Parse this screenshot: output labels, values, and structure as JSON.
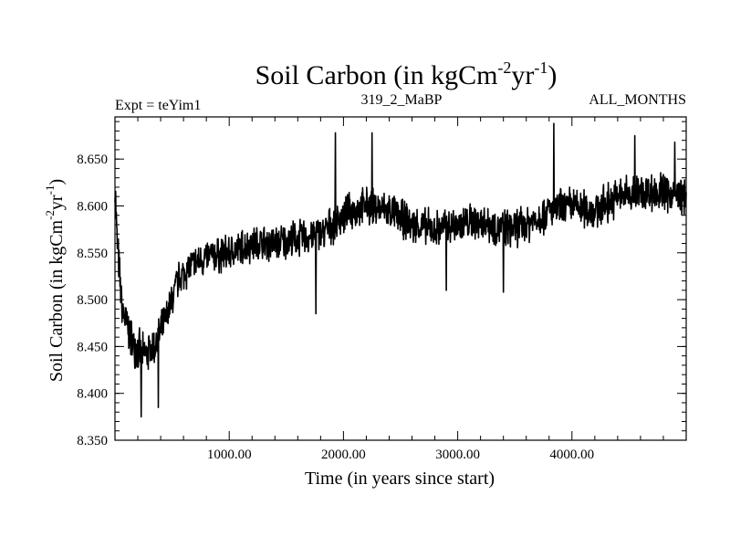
{
  "chart_data": {
    "type": "line",
    "title": {
      "prefix": "Soil Carbon (in kgCm",
      "sup1": "-2",
      "mid": "yr",
      "sup2": "-1",
      "suffix": ")"
    },
    "subtitle_left": "Expt = teYim1",
    "subtitle_center": "319_2_MaBP",
    "subtitle_right": "ALL_MONTHS",
    "xlabel": "Time (in years since start)",
    "ylabel": {
      "prefix": "Soil Carbon (in kgCm",
      "sup1": "-2",
      "mid": "yr",
      "sup2": "-1",
      "suffix": ")"
    },
    "xlim": [
      0,
      5000
    ],
    "ylim": [
      8.35,
      8.695
    ],
    "x_ticks": [
      {
        "value": 1000,
        "label": "1000.00"
      },
      {
        "value": 2000,
        "label": "2000.00"
      },
      {
        "value": 3000,
        "label": "3000.00"
      },
      {
        "value": 4000,
        "label": "4000.00"
      }
    ],
    "y_ticks": [
      {
        "value": 8.35,
        "label": "8.350"
      },
      {
        "value": 8.4,
        "label": "8.400"
      },
      {
        "value": 8.45,
        "label": "8.450"
      },
      {
        "value": 8.5,
        "label": "8.500"
      },
      {
        "value": 8.55,
        "label": "8.550"
      },
      {
        "value": 8.6,
        "label": "8.600"
      },
      {
        "value": 8.65,
        "label": "8.650"
      }
    ],
    "series": [
      {
        "name": "Soil Carbon",
        "color": "#000000",
        "noise_seed": 7,
        "trend": {
          "x": [
            0,
            15,
            60,
            150,
            250,
            350,
            450,
            550,
            650,
            800,
            1000,
            1200,
            1400,
            1600,
            1800,
            2000,
            2200,
            2400,
            2600,
            2800,
            3000,
            3200,
            3400,
            3600,
            3800,
            4000,
            4200,
            4400,
            4600,
            4800,
            5000
          ],
          "y": [
            8.63,
            8.57,
            8.49,
            8.455,
            8.44,
            8.45,
            8.48,
            8.52,
            8.535,
            8.545,
            8.55,
            8.56,
            8.56,
            8.565,
            8.57,
            8.59,
            8.6,
            8.595,
            8.58,
            8.575,
            8.58,
            8.585,
            8.575,
            8.58,
            8.595,
            8.6,
            8.595,
            8.61,
            8.615,
            8.615,
            8.61
          ]
        },
        "amplitude": {
          "x": [
            0,
            300,
            600,
            5000
          ],
          "y": [
            0.055,
            0.05,
            0.045,
            0.05
          ]
        },
        "peaks": [
          [
            230,
            8.375
          ],
          [
            380,
            8.385
          ],
          [
            1760,
            8.485
          ],
          [
            1930,
            8.678
          ],
          [
            2250,
            8.678
          ],
          [
            2900,
            8.51
          ],
          [
            3400,
            8.508
          ],
          [
            3840,
            8.688
          ],
          [
            4550,
            8.675
          ],
          [
            4900,
            8.668
          ]
        ]
      }
    ]
  }
}
